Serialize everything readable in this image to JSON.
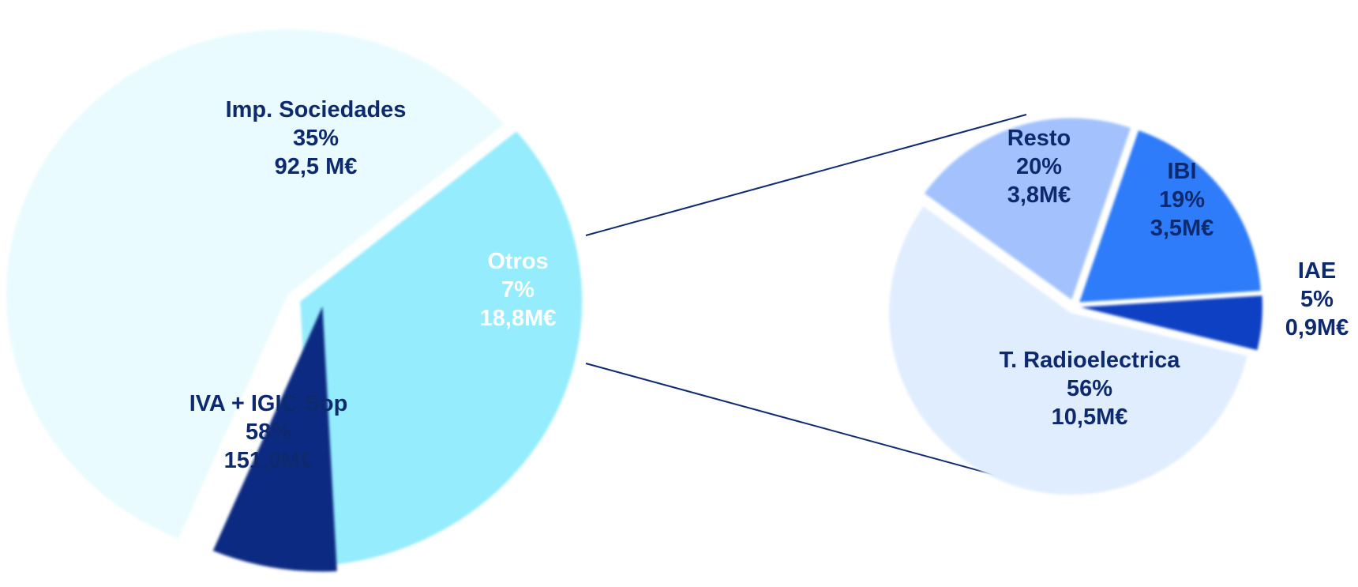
{
  "chart_data": [
    {
      "type": "pie",
      "slices": [
        {
          "name": "Imp. Sociedades",
          "percent": "35%",
          "amount": "92,5 M€",
          "value": 92.5,
          "color": "#95ecfc",
          "label_color": "#0e2a6e"
        },
        {
          "name": "Otros",
          "percent": "7%",
          "amount": "18,8M€",
          "value": 18.8,
          "color": "#072b82",
          "label_color": "#ffffff",
          "exploded": true
        },
        {
          "name": "IVA + IGIC Sop",
          "percent": "58%",
          "amount": "151,0M€",
          "value": 151.0,
          "color": "#e9fbfe",
          "label_color": "#0e2a6e"
        }
      ]
    },
    {
      "type": "pie",
      "breakdown_of": "Otros",
      "slices": [
        {
          "name": "IBI",
          "percent": "19%",
          "amount": "3,5M€",
          "value": 3.5,
          "color": "#2f7bf9",
          "label_color": "#0e2a6e"
        },
        {
          "name": "IAE",
          "percent": "5%",
          "amount": "0,9M€",
          "value": 0.9,
          "color": "#0a3fc2",
          "label_color": "#0e2a6e"
        },
        {
          "name": "T. Radioelectrica",
          "percent": "56%",
          "amount": "10,5M€",
          "value": 10.5,
          "color": "#e0edfe",
          "label_color": "#0e2a6e"
        },
        {
          "name": "Resto",
          "percent": "20%",
          "amount": "3,8M€",
          "value": 3.8,
          "color": "#a3c2fd",
          "label_color": "#0e2a6e"
        }
      ]
    }
  ],
  "connector_color": "#0e2a6e"
}
